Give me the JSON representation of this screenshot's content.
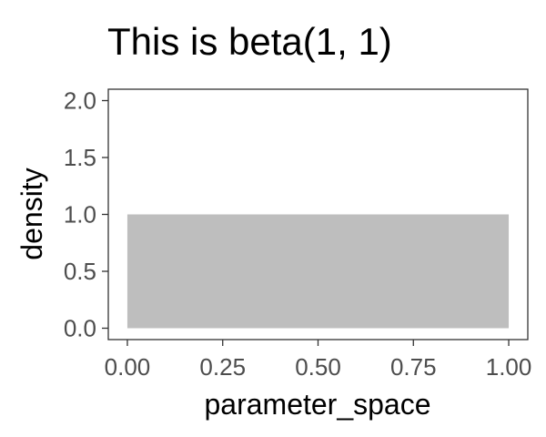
{
  "chart_data": {
    "type": "area",
    "title": "This is beta(1, 1)",
    "xlabel": "parameter_space",
    "ylabel": "density",
    "xlim": [
      -0.05,
      1.05
    ],
    "ylim": [
      -0.1,
      2.1
    ],
    "x_ticks": [
      0,
      0.25,
      0.5,
      0.75,
      1
    ],
    "x_tick_labels": [
      "0.00",
      "0.25",
      "0.50",
      "0.75",
      "1.00"
    ],
    "y_ticks": [
      0,
      0.5,
      1,
      1.5,
      2
    ],
    "y_tick_labels": [
      "0.0",
      "0.5",
      "1.0",
      "1.5",
      "2.0"
    ],
    "grid": false,
    "series": [
      {
        "x": [
          0,
          1
        ],
        "y": [
          1,
          1
        ],
        "fill": "#bebebe"
      }
    ]
  }
}
